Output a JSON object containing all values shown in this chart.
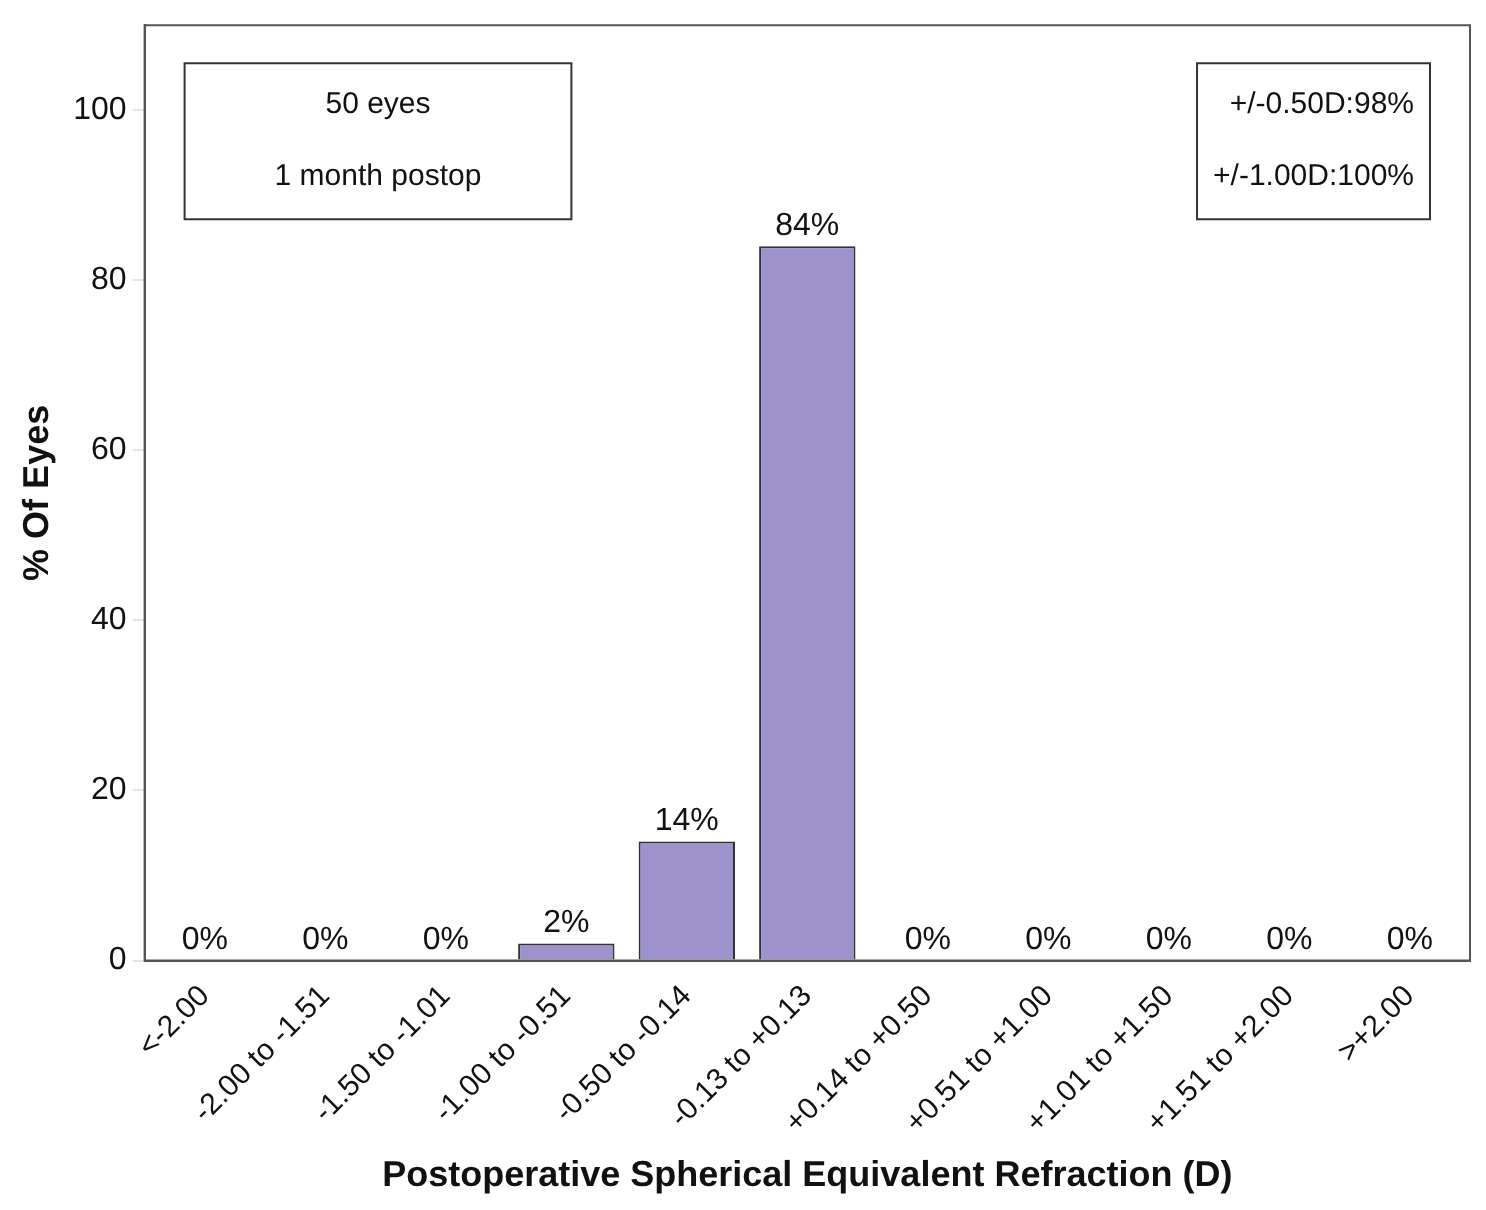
{
  "chart_data": {
    "type": "bar",
    "xlabel": "Postoperative Spherical Equivalent Refraction (D)",
    "ylabel": "% Of Eyes",
    "categories": [
      "<-2.00",
      "-2.00 to -1.51",
      "-1.50 to -1.01",
      "-1.00 to -0.51",
      "-0.50 to -0.14",
      "-0.13 to +0.13",
      "+0.14 to +0.50",
      "+0.51 to +1.00",
      "+1.01 to +1.50",
      "+1.51 to +2.00",
      ">+2.00"
    ],
    "values": [
      0,
      0,
      0,
      2,
      14,
      84,
      0,
      0,
      0,
      0,
      0
    ],
    "value_labels": [
      "0%",
      "0%",
      "0%",
      "2%",
      "14%",
      "84%",
      "0%",
      "0%",
      "0%",
      "0%",
      "0%"
    ],
    "color": "#9d92cc",
    "ylim": [
      0,
      110
    ],
    "yticks": [
      0,
      20,
      40,
      60,
      80,
      100
    ],
    "grid": false,
    "legend": false,
    "annotations": [
      "50 eyes\n1 month postop",
      "+/-0.50D:98%\n+/-1.00D:100%"
    ]
  }
}
